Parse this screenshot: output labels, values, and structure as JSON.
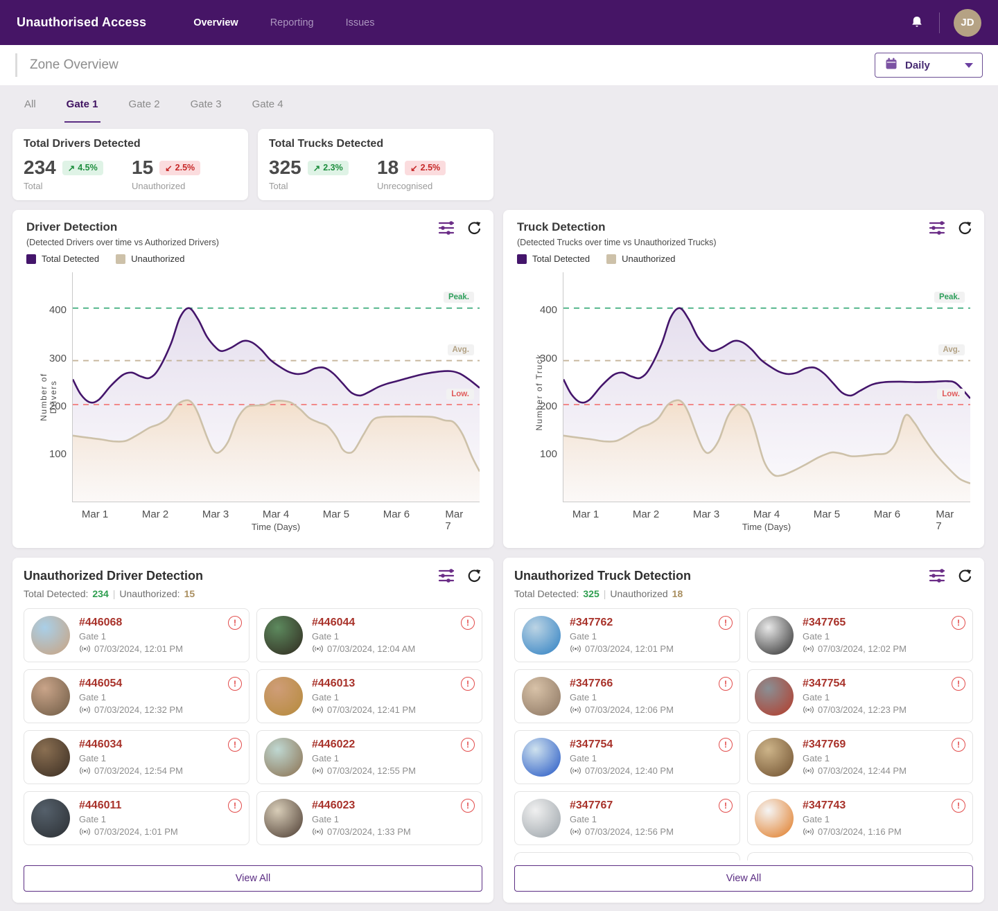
{
  "navbar": {
    "title": "Unauthorised Access",
    "links": [
      {
        "label": "Overview",
        "active": true
      },
      {
        "label": "Reporting",
        "active": false
      },
      {
        "label": "Issues",
        "active": false
      }
    ],
    "avatar": "JD"
  },
  "header": {
    "title": "Zone Overview",
    "period": "Daily"
  },
  "tabs": [
    {
      "label": "All",
      "active": false
    },
    {
      "label": "Gate 1",
      "active": true
    },
    {
      "label": "Gate 2",
      "active": false
    },
    {
      "label": "Gate 3",
      "active": false
    },
    {
      "label": "Gate 4",
      "active": false
    }
  ],
  "stats": [
    {
      "title": "Total Drivers Detected",
      "groups": [
        {
          "value": "234",
          "arrow": "↗",
          "trend": "4.5%",
          "dir": "up",
          "label": "Total"
        },
        {
          "value": "15",
          "arrow": "↙",
          "trend": "2.5%",
          "dir": "down",
          "label": "Unauthorized"
        }
      ]
    },
    {
      "title": "Total Trucks Detected",
      "groups": [
        {
          "value": "325",
          "arrow": "↗",
          "trend": "2.3%",
          "dir": "up",
          "label": "Total"
        },
        {
          "value": "18",
          "arrow": "↙",
          "trend": "2.5%",
          "dir": "down",
          "label": "Unrecognised"
        }
      ]
    }
  ],
  "chart_data": [
    {
      "type": "area",
      "title": "Driver Detection",
      "subtitle": "(Detected Drivers over time vs Authorized Drivers)",
      "legend": [
        "Total Detected",
        "Unauthorized"
      ],
      "ylabel": "Number of Drivers",
      "xlabel": "Time (Days)",
      "xticks": [
        "Mar 1",
        "Mar 2",
        "Mar 3",
        "Mar 4",
        "Mar 5",
        "Mar 6",
        "Mar 7"
      ],
      "yticks": [
        100,
        200,
        300,
        400
      ],
      "ylim": [
        0,
        480
      ],
      "xlim": [
        0.62,
        7.38
      ],
      "grid": false,
      "ref_lines": [
        {
          "label": "Peak.",
          "value": 405,
          "line_color": "#3EAC7C",
          "text_color": "#2E9E5B"
        },
        {
          "label": "Avg.",
          "value": 295,
          "line_color": "#C5B49A",
          "text_color": "#B3A284"
        },
        {
          "label": "Low.",
          "value": 203,
          "line_color": "#F27A7A",
          "text_color": "#E05B5B"
        }
      ],
      "series": [
        {
          "name": "Total Detected",
          "color": "#44156B",
          "fill_from": "rgba(93,52,145,0.16)",
          "fill_to": "rgba(93,52,145,0.02)",
          "points": [
            [
              0.62,
              256
            ],
            [
              0.75,
              225
            ],
            [
              0.9,
              208
            ],
            [
              1.05,
              213
            ],
            [
              1.25,
              242
            ],
            [
              1.45,
              265
            ],
            [
              1.6,
              270
            ],
            [
              1.75,
              262
            ],
            [
              1.9,
              259
            ],
            [
              2.05,
              278
            ],
            [
              2.25,
              330
            ],
            [
              2.4,
              385
            ],
            [
              2.55,
              405
            ],
            [
              2.7,
              382
            ],
            [
              2.85,
              345
            ],
            [
              3.0,
              322
            ],
            [
              3.1,
              315
            ],
            [
              3.25,
              322
            ],
            [
              3.45,
              336
            ],
            [
              3.6,
              333
            ],
            [
              3.75,
              318
            ],
            [
              3.9,
              297
            ],
            [
              4.05,
              283
            ],
            [
              4.2,
              272
            ],
            [
              4.35,
              267
            ],
            [
              4.5,
              270
            ],
            [
              4.65,
              279
            ],
            [
              4.8,
              280
            ],
            [
              4.95,
              268
            ],
            [
              5.1,
              248
            ],
            [
              5.25,
              228
            ],
            [
              5.4,
              222
            ],
            [
              5.55,
              230
            ],
            [
              5.7,
              240
            ],
            [
              5.85,
              247
            ],
            [
              6.0,
              252
            ],
            [
              6.2,
              259
            ],
            [
              6.45,
              267
            ],
            [
              6.7,
              272
            ],
            [
              6.9,
              273
            ],
            [
              7.05,
              268
            ],
            [
              7.2,
              256
            ],
            [
              7.38,
              238
            ]
          ]
        },
        {
          "name": "Unauthorized",
          "color": "#CDC1A9",
          "fill_from": "rgba(247,203,138,0.40)",
          "fill_to": "rgba(250,236,214,0.15)",
          "points": [
            [
              0.62,
              138
            ],
            [
              0.85,
              134
            ],
            [
              1.1,
              130
            ],
            [
              1.3,
              126
            ],
            [
              1.5,
              127
            ],
            [
              1.7,
              140
            ],
            [
              1.9,
              155
            ],
            [
              2.05,
              162
            ],
            [
              2.2,
              175
            ],
            [
              2.35,
              202
            ],
            [
              2.5,
              212
            ],
            [
              2.6,
              207
            ],
            [
              2.7,
              185
            ],
            [
              2.85,
              135
            ],
            [
              2.95,
              108
            ],
            [
              3.05,
              103
            ],
            [
              3.2,
              125
            ],
            [
              3.35,
              172
            ],
            [
              3.5,
              197
            ],
            [
              3.65,
              201
            ],
            [
              3.8,
              202
            ],
            [
              3.95,
              210
            ],
            [
              4.1,
              211
            ],
            [
              4.25,
              207
            ],
            [
              4.4,
              193
            ],
            [
              4.55,
              175
            ],
            [
              4.7,
              166
            ],
            [
              4.85,
              158
            ],
            [
              5.0,
              135
            ],
            [
              5.1,
              110
            ],
            [
              5.2,
              102
            ],
            [
              5.3,
              108
            ],
            [
              5.45,
              140
            ],
            [
              5.6,
              170
            ],
            [
              5.75,
              177
            ],
            [
              6.0,
              178
            ],
            [
              6.3,
              178
            ],
            [
              6.6,
              177
            ],
            [
              6.8,
              170
            ],
            [
              6.95,
              166
            ],
            [
              7.1,
              140
            ],
            [
              7.25,
              95
            ],
            [
              7.38,
              63
            ]
          ]
        }
      ]
    },
    {
      "type": "area",
      "title": "Truck Detection",
      "subtitle": "(Detected Trucks over time vs Unauthorized Trucks)",
      "legend": [
        "Total Detected",
        "Unauthorized"
      ],
      "ylabel": "Number of Truck",
      "xlabel": "Time (Days)",
      "xticks": [
        "Mar 1",
        "Mar 2",
        "Mar 3",
        "Mar 4",
        "Mar 5",
        "Mar 6",
        "Mar 7"
      ],
      "yticks": [
        100,
        200,
        300,
        400
      ],
      "ylim": [
        0,
        480
      ],
      "xlim": [
        0.62,
        7.38
      ],
      "grid": false,
      "ref_lines": [
        {
          "label": "Peak.",
          "value": 405,
          "line_color": "#3EAC7C",
          "text_color": "#2E9E5B"
        },
        {
          "label": "Avg.",
          "value": 295,
          "line_color": "#C5B49A",
          "text_color": "#B3A284"
        },
        {
          "label": "Low.",
          "value": 203,
          "line_color": "#F27A7A",
          "text_color": "#E05B5B"
        }
      ],
      "series": [
        {
          "name": "Total Detected",
          "color": "#44156B",
          "fill_from": "rgba(93,52,145,0.16)",
          "fill_to": "rgba(93,52,145,0.02)",
          "points": [
            [
              0.62,
              256
            ],
            [
              0.75,
              225
            ],
            [
              0.9,
              208
            ],
            [
              1.05,
              213
            ],
            [
              1.25,
              242
            ],
            [
              1.45,
              265
            ],
            [
              1.6,
              270
            ],
            [
              1.75,
              262
            ],
            [
              1.9,
              259
            ],
            [
              2.05,
              278
            ],
            [
              2.25,
              330
            ],
            [
              2.4,
              385
            ],
            [
              2.55,
              405
            ],
            [
              2.7,
              382
            ],
            [
              2.85,
              345
            ],
            [
              3.0,
              322
            ],
            [
              3.1,
              315
            ],
            [
              3.25,
              322
            ],
            [
              3.45,
              336
            ],
            [
              3.6,
              333
            ],
            [
              3.75,
              318
            ],
            [
              3.9,
              297
            ],
            [
              4.05,
              283
            ],
            [
              4.2,
              272
            ],
            [
              4.35,
              267
            ],
            [
              4.5,
              270
            ],
            [
              4.65,
              279
            ],
            [
              4.8,
              280
            ],
            [
              4.95,
              268
            ],
            [
              5.1,
              248
            ],
            [
              5.25,
              228
            ],
            [
              5.4,
              222
            ],
            [
              5.55,
              232
            ],
            [
              5.75,
              245
            ],
            [
              5.95,
              250
            ],
            [
              6.2,
              251
            ],
            [
              6.5,
              250
            ],
            [
              6.8,
              251
            ],
            [
              7.0,
              252
            ],
            [
              7.15,
              247
            ],
            [
              7.38,
              216
            ]
          ]
        },
        {
          "name": "Unauthorized",
          "color": "#CDC1A9",
          "fill_from": "rgba(247,203,138,0.40)",
          "fill_to": "rgba(250,236,214,0.15)",
          "points": [
            [
              0.62,
              138
            ],
            [
              0.85,
              134
            ],
            [
              1.1,
              130
            ],
            [
              1.3,
              126
            ],
            [
              1.5,
              127
            ],
            [
              1.7,
              140
            ],
            [
              1.9,
              155
            ],
            [
              2.05,
              162
            ],
            [
              2.2,
              175
            ],
            [
              2.35,
              202
            ],
            [
              2.5,
              212
            ],
            [
              2.6,
              207
            ],
            [
              2.7,
              185
            ],
            [
              2.85,
              135
            ],
            [
              2.95,
              108
            ],
            [
              3.05,
              103
            ],
            [
              3.2,
              128
            ],
            [
              3.35,
              178
            ],
            [
              3.5,
              202
            ],
            [
              3.6,
              198
            ],
            [
              3.7,
              185
            ],
            [
              3.8,
              150
            ],
            [
              3.95,
              85
            ],
            [
              4.1,
              57
            ],
            [
              4.25,
              55
            ],
            [
              4.45,
              65
            ],
            [
              4.65,
              78
            ],
            [
              4.85,
              92
            ],
            [
              5.0,
              100
            ],
            [
              5.1,
              103
            ],
            [
              5.25,
              100
            ],
            [
              5.4,
              95
            ],
            [
              5.6,
              96
            ],
            [
              5.8,
              99
            ],
            [
              6.0,
              102
            ],
            [
              6.15,
              125
            ],
            [
              6.3,
              180
            ],
            [
              6.45,
              165
            ],
            [
              6.6,
              135
            ],
            [
              6.8,
              100
            ],
            [
              7.0,
              72
            ],
            [
              7.2,
              48
            ],
            [
              7.38,
              38
            ]
          ]
        }
      ]
    }
  ],
  "detections": [
    {
      "title": "Unauthorized Driver Detection",
      "total_label": "Total Detected:",
      "total": "234",
      "unauth_label": "Unauthorized:",
      "unauth": "15",
      "view_all": "View All",
      "partial_row": false,
      "items": [
        {
          "id": "#446068",
          "gate": "Gate 1",
          "time": "07/03/2024, 12:01 PM",
          "photo": [
            "#a9cfe8",
            "#caa27e"
          ]
        },
        {
          "id": "#446044",
          "gate": "Gate 1",
          "time": "07/03/2024, 12:04 AM",
          "photo": [
            "#5d8a5e",
            "#30291f"
          ]
        },
        {
          "id": "#446054",
          "gate": "Gate 1",
          "time": "07/03/2024, 12:32 PM",
          "photo": [
            "#c9a489",
            "#6d5a44"
          ]
        },
        {
          "id": "#446013",
          "gate": "Gate 1",
          "time": "07/03/2024, 12:41 PM",
          "photo": [
            "#cf9d78",
            "#b58a3a"
          ]
        },
        {
          "id": "#446034",
          "gate": "Gate 1",
          "time": "07/03/2024, 12:54 PM",
          "photo": [
            "#8a6f52",
            "#3a2d22"
          ]
        },
        {
          "id": "#446022",
          "gate": "Gate 1",
          "time": "07/03/2024, 12:55 PM",
          "photo": [
            "#bfd8d2",
            "#8a6f4e"
          ]
        },
        {
          "id": "#446011",
          "gate": "Gate 1",
          "time": "07/03/2024, 1:01 PM",
          "photo": [
            "#55606b",
            "#2b2f33"
          ]
        },
        {
          "id": "#446023",
          "gate": "Gate 1",
          "time": "07/03/2024, 1:33 PM",
          "photo": [
            "#d8cdb8",
            "#4a3a30"
          ]
        }
      ]
    },
    {
      "title": "Unauthorized Truck Detection",
      "total_label": "Total Detected:",
      "total": "325",
      "unauth_label": "Unauthorized",
      "unauth": "18",
      "view_all": "View All",
      "partial_row": true,
      "items": [
        {
          "id": "#347762",
          "gate": "Gate 1",
          "time": "07/03/2024, 12:01 PM",
          "photo": [
            "#bcd4e4",
            "#2d7fc2"
          ]
        },
        {
          "id": "#347765",
          "gate": "Gate 1",
          "time": "07/03/2024, 12:02 PM",
          "photo": [
            "#e8e8e8",
            "#2b2b2b"
          ]
        },
        {
          "id": "#347766",
          "gate": "Gate 1",
          "time": "07/03/2024, 12:06 PM",
          "photo": [
            "#d8c2a8",
            "#8a7460"
          ]
        },
        {
          "id": "#347754",
          "gate": "Gate 1",
          "time": "07/03/2024, 12:23 PM",
          "photo": [
            "#8a8f94",
            "#b53a28"
          ]
        },
        {
          "id": "#347754",
          "gate": "Gate 1",
          "time": "07/03/2024, 12:40 PM",
          "photo": [
            "#cfe2ee",
            "#2255c4"
          ]
        },
        {
          "id": "#347769",
          "gate": "Gate 1",
          "time": "07/03/2024, 12:44 PM",
          "photo": [
            "#cdb489",
            "#6e4f2e"
          ]
        },
        {
          "id": "#347767",
          "gate": "Gate 1",
          "time": "07/03/2024, 12:56 PM",
          "photo": [
            "#f0f0f0",
            "#9aa2a8"
          ]
        },
        {
          "id": "#347743",
          "gate": "Gate 1",
          "time": "07/03/2024, 1:16 PM",
          "photo": [
            "#f5f5f5",
            "#e07820"
          ]
        }
      ]
    }
  ]
}
